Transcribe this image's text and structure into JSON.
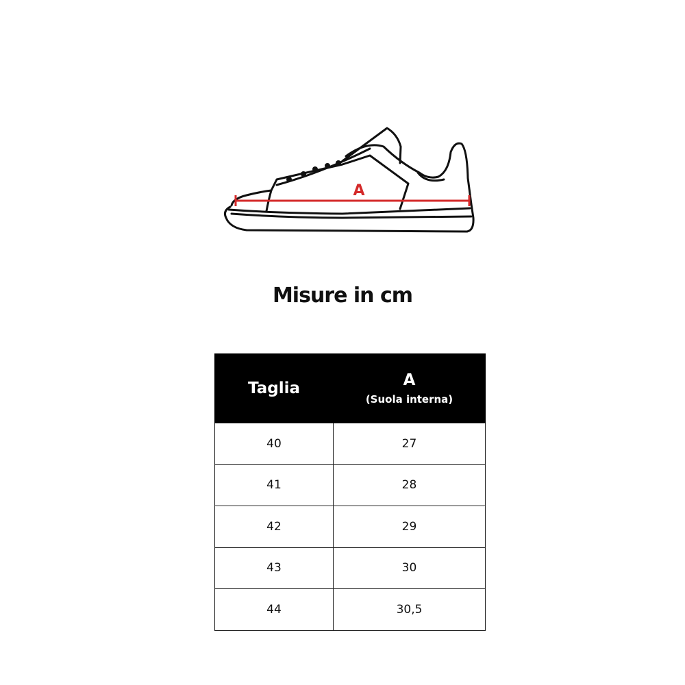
{
  "illustration": {
    "measure_label": "A",
    "measure_color": "#d42a2a"
  },
  "title": "Misure in cm",
  "table": {
    "headers": {
      "size": "Taglia",
      "a": "A",
      "a_sub": "(Suola interna)"
    },
    "rows": [
      {
        "size": "40",
        "a": "27"
      },
      {
        "size": "41",
        "a": "28"
      },
      {
        "size": "42",
        "a": "29"
      },
      {
        "size": "43",
        "a": "30"
      },
      {
        "size": "44",
        "a": "30,5"
      }
    ]
  }
}
